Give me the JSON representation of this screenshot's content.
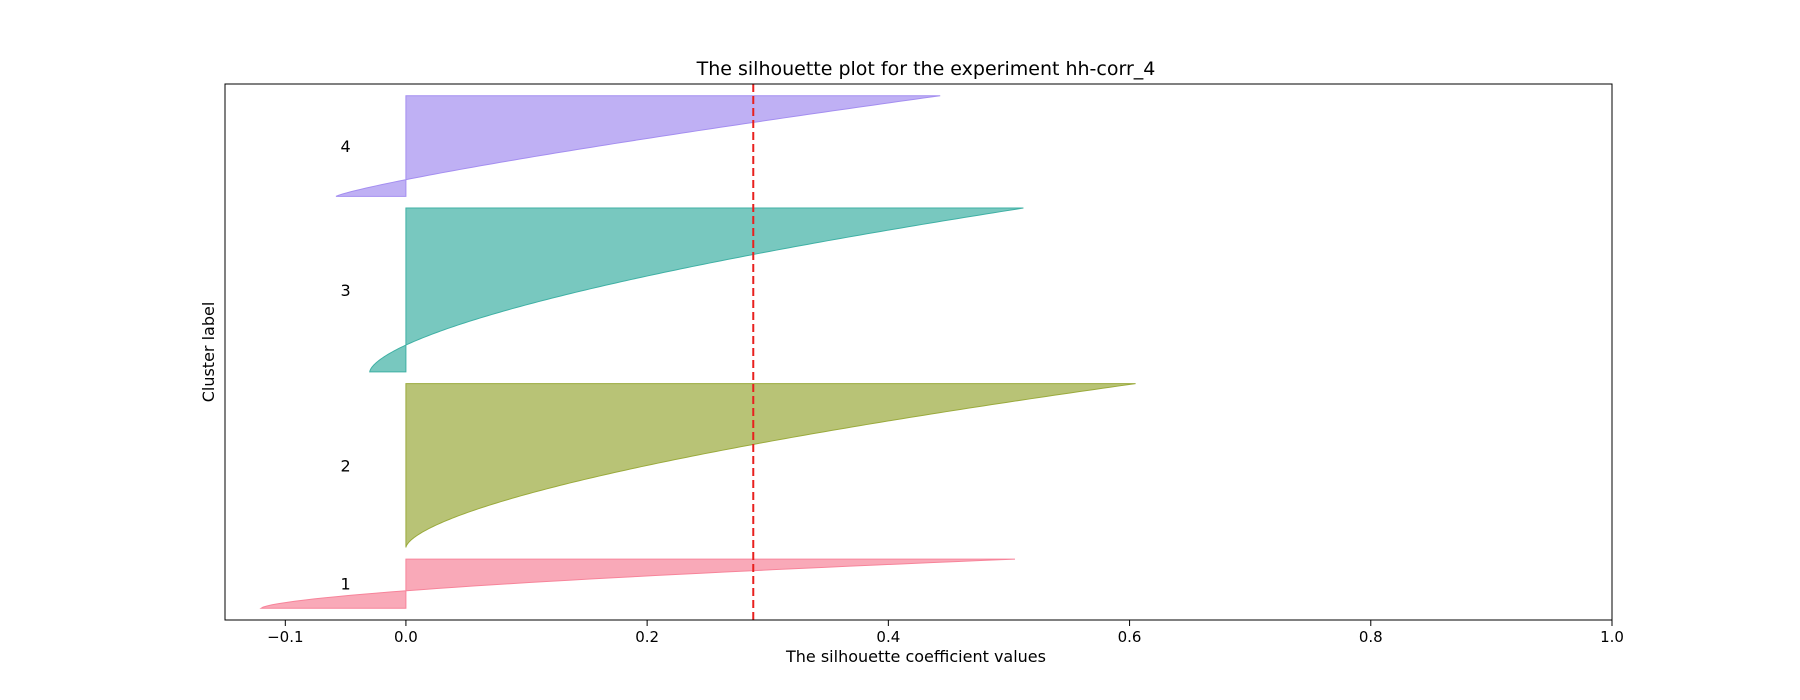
{
  "chart_data": {
    "type": "area",
    "title": "The silhouette plot for the experiment hh-corr_4",
    "xlabel": "The silhouette coefficient values",
    "ylabel": "Cluster label",
    "xlim": [
      -0.15,
      1.0
    ],
    "xticks": [
      -0.1,
      0.0,
      0.2,
      0.4,
      0.6,
      0.8,
      1.0
    ],
    "xtick_labels": [
      "−0.1",
      "0.0",
      "0.2",
      "0.4",
      "0.6",
      "0.8",
      "1.0"
    ],
    "average_silhouette_score": 0.288,
    "average_line_color": "#e8201e",
    "clusters": [
      {
        "label": "1",
        "color": "#f7849a",
        "n_samples": 42,
        "min": -0.12,
        "max": 0.505,
        "curve_power": 1.6
      },
      {
        "label": "2",
        "color": "#9aaa3c",
        "n_samples": 140,
        "min": 0.0,
        "max": 0.605,
        "curve_power": 1.6
      },
      {
        "label": "3",
        "color": "#3fb0a4",
        "n_samples": 140,
        "min": -0.03,
        "max": 0.512,
        "curve_power": 1.6
      },
      {
        "label": "4",
        "color": "#a48ef0",
        "n_samples": 86,
        "min": -0.058,
        "max": 0.443,
        "curve_power": 1.2
      }
    ]
  }
}
